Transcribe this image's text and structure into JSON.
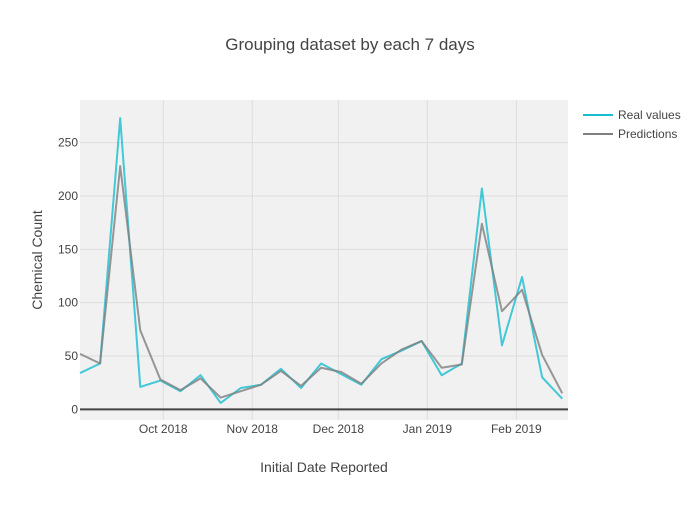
{
  "chart_data": {
    "type": "line",
    "title": "Grouping dataset by each 7 days",
    "xlabel": "Initial Date Reported",
    "ylabel": "Chemical Count",
    "x_type": "date",
    "x_range": [
      "2018-09-02",
      "2019-02-19"
    ],
    "x_ticks": [
      {
        "date": "2018-10-01",
        "label": "Oct 2018"
      },
      {
        "date": "2018-11-01",
        "label": "Nov 2018"
      },
      {
        "date": "2018-12-01",
        "label": "Dec 2018"
      },
      {
        "date": "2019-01-01",
        "label": "Jan 2019"
      },
      {
        "date": "2019-02-01",
        "label": "Feb 2019"
      }
    ],
    "ylim": [
      -10,
      290
    ],
    "y_ticks": [
      0,
      50,
      100,
      150,
      200,
      250
    ],
    "grid": true,
    "legend": "top-right",
    "x": [
      "2018-09-02",
      "2018-09-09",
      "2018-09-16",
      "2018-09-23",
      "2018-09-30",
      "2018-10-07",
      "2018-10-14",
      "2018-10-21",
      "2018-10-28",
      "2018-11-04",
      "2018-11-11",
      "2018-11-18",
      "2018-11-25",
      "2018-12-02",
      "2018-12-09",
      "2018-12-16",
      "2018-12-23",
      "2018-12-30",
      "2019-01-06",
      "2019-01-13",
      "2019-01-20",
      "2019-01-27",
      "2019-02-03",
      "2019-02-10",
      "2019-02-17"
    ],
    "series": [
      {
        "name": "Real values",
        "color": "#17becf",
        "values": [
          34,
          43,
          273,
          21,
          27,
          17,
          32,
          6,
          20,
          23,
          38,
          20,
          43,
          33,
          23,
          47,
          55,
          64,
          32,
          43,
          207,
          60,
          124,
          30,
          10
        ]
      },
      {
        "name": "Predictions",
        "color": "#7f7f7f",
        "values": [
          52,
          43,
          228,
          74,
          28,
          18,
          29,
          11,
          17,
          23,
          36,
          22,
          39,
          35,
          24,
          43,
          56,
          64,
          39,
          42,
          174,
          92,
          112,
          51,
          15
        ]
      }
    ]
  }
}
